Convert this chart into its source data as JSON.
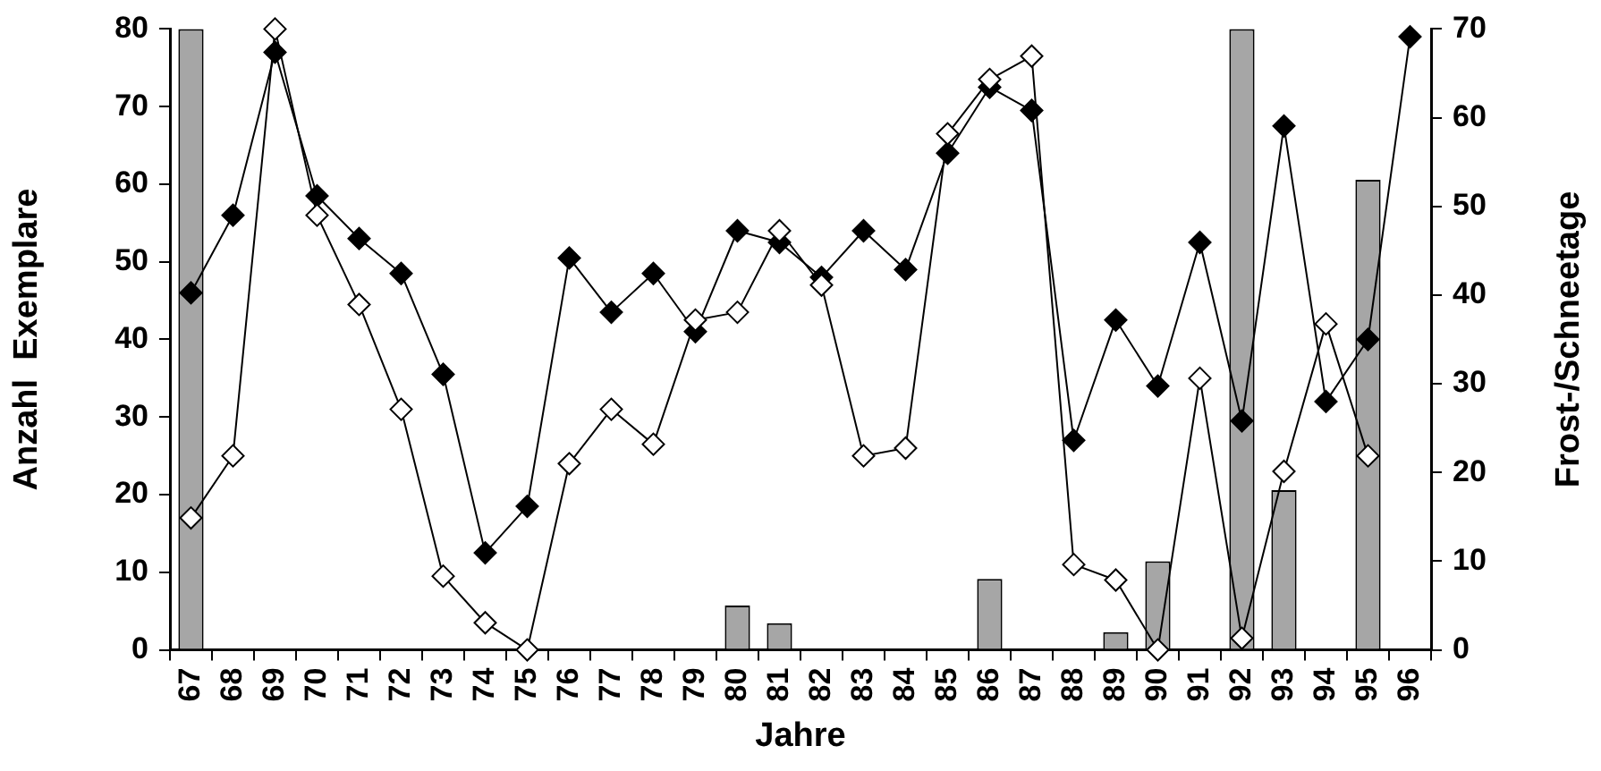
{
  "chart_data": {
    "type": "line",
    "xlabel": "Jahre",
    "ylabel": "Anzahl  Exemplare",
    "y2label": "Frost-/Schneetage",
    "categories": [
      "67",
      "68",
      "69",
      "70",
      "71",
      "72",
      "73",
      "74",
      "75",
      "76",
      "77",
      "78",
      "79",
      "80",
      "81",
      "82",
      "83",
      "84",
      "85",
      "86",
      "87",
      "88",
      "89",
      "90",
      "91",
      "92",
      "93",
      "94",
      "95",
      "96"
    ],
    "series": [
      {
        "type": "bar",
        "axis": "y2",
        "color": "#a6a6a6",
        "values": [
          70,
          null,
          null,
          null,
          null,
          null,
          null,
          null,
          null,
          null,
          null,
          null,
          null,
          5,
          3,
          null,
          null,
          null,
          null,
          8,
          null,
          null,
          2,
          10,
          null,
          70,
          18,
          null,
          53,
          null
        ]
      },
      {
        "color": "#000000",
        "marker": "diamond",
        "values": [
          46,
          56,
          77,
          58.5,
          53,
          48.5,
          35.5,
          12.5,
          18.5,
          50.5,
          43.5,
          48.5,
          41,
          54,
          52.5,
          48,
          54,
          49,
          64,
          72.5,
          69.5,
          27,
          42.5,
          34,
          52.5,
          29.5,
          67.5,
          32,
          40,
          79
        ]
      },
      {
        "color": "#ffffff",
        "marker": "diamond",
        "values": [
          17,
          25,
          80,
          56,
          44.5,
          31,
          9.5,
          3.5,
          0,
          24,
          31,
          26.5,
          42.5,
          43.5,
          54,
          47,
          25,
          26,
          66.5,
          73.5,
          76.5,
          11,
          9,
          0,
          35,
          1.5,
          23,
          42,
          25,
          null
        ]
      }
    ],
    "ylim": [
      0,
      80
    ],
    "yticks": [
      0,
      10,
      20,
      30,
      40,
      50,
      60,
      70,
      80
    ],
    "y2lim": [
      0,
      70
    ],
    "y2ticks": [
      0,
      10,
      20,
      30,
      40,
      50,
      60,
      70
    ],
    "grid": false,
    "legend": false,
    "line_style": "solid"
  }
}
